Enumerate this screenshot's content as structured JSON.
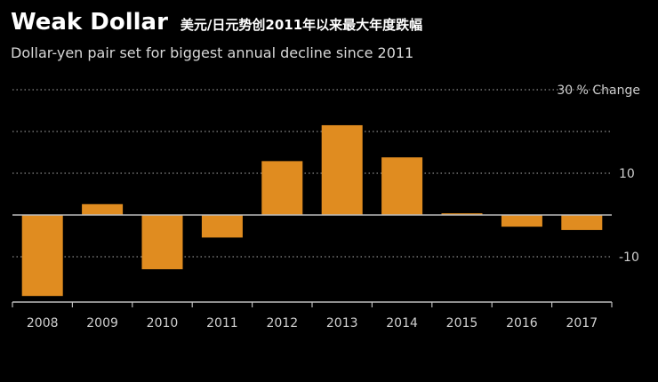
{
  "header": {
    "title": "Weak Dollar",
    "title_cn": "美元/日元势创2011年以来最大年度跌幅",
    "subtitle": "Dollar-yen pair set for biggest annual decline since 2011"
  },
  "colors": {
    "background": "#000000",
    "bar": "#e08c20",
    "grid": "#8a8a8a",
    "text": "#ffffff",
    "tick_text": "#cfcfcf"
  },
  "chart_data": {
    "type": "bar",
    "categories": [
      "2008",
      "2009",
      "2010",
      "2011",
      "2012",
      "2013",
      "2014",
      "2015",
      "2016",
      "2017"
    ],
    "values": [
      -19.4,
      2.6,
      -13.0,
      -5.4,
      12.9,
      21.5,
      13.8,
      0.4,
      -2.8,
      -3.6
    ],
    "ylabel": "% Change",
    "ylim": [
      -21,
      32
    ],
    "yticks": [
      30,
      10,
      -10
    ],
    "ytick_labels": [
      "30",
      "10",
      "-10"
    ],
    "gridlines": [
      30,
      20,
      10,
      0,
      -10
    ],
    "grid": true,
    "legend": "none"
  }
}
